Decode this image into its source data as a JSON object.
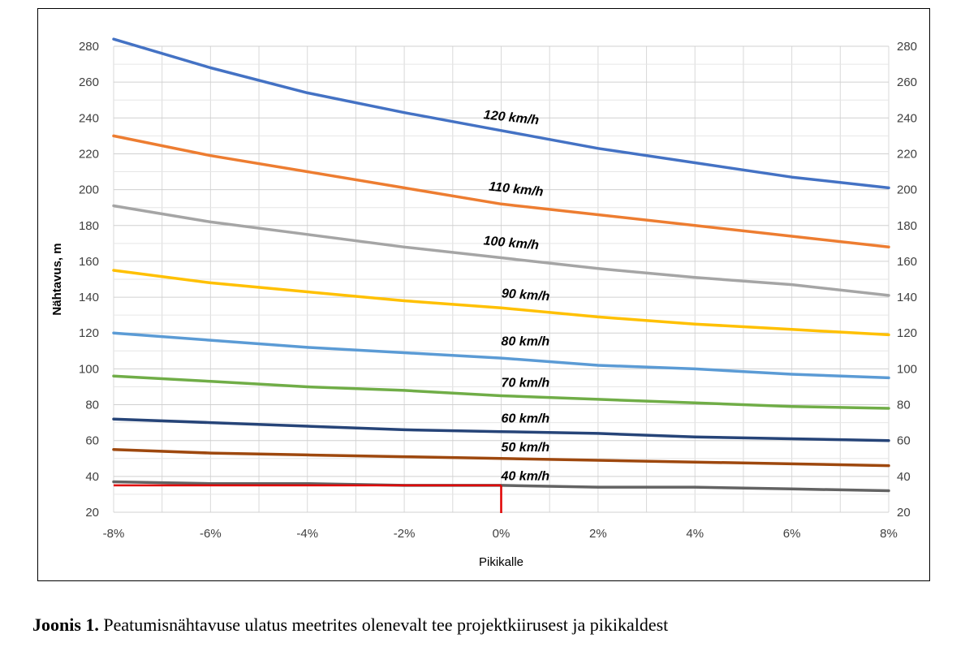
{
  "caption": {
    "label": "Joonis 1.",
    "text": " Peatumisnähtavuse ulatus meetrites olenevalt tee projektkiirusest ja pikikaldest"
  },
  "chart_data": {
    "type": "line",
    "xlabel": "Pikikalle",
    "ylabel": "Nähtavus, m",
    "xlim": [
      -8,
      8
    ],
    "ylim": [
      20,
      280
    ],
    "x_tick_labels": [
      "-8%",
      "-6%",
      "-4%",
      "-2%",
      "0%",
      "2%",
      "4%",
      "6%",
      "8%"
    ],
    "y_ticks": [
      20,
      40,
      60,
      80,
      100,
      120,
      140,
      160,
      180,
      200,
      220,
      240,
      260,
      280
    ],
    "grid": true,
    "x": [
      -8,
      -6,
      -4,
      -2,
      0,
      2,
      4,
      6,
      8
    ],
    "series": [
      {
        "name": "120 km/h",
        "color": "#4472C4",
        "values": [
          284,
          268,
          254,
          243,
          233,
          223,
          215,
          207,
          201
        ]
      },
      {
        "name": "110 km/h",
        "color": "#ED7D31",
        "values": [
          230,
          219,
          210,
          201,
          192,
          186,
          180,
          174,
          168
        ]
      },
      {
        "name": "100 km/h",
        "color": "#A5A5A5",
        "values": [
          191,
          182,
          175,
          168,
          162,
          156,
          151,
          147,
          141
        ]
      },
      {
        "name": "90 km/h",
        "color": "#FFC000",
        "values": [
          155,
          148,
          143,
          138,
          134,
          129,
          125,
          122,
          119
        ]
      },
      {
        "name": "80 km/h",
        "color": "#5B9BD5",
        "values": [
          120,
          116,
          112,
          109,
          106,
          102,
          100,
          97,
          95
        ]
      },
      {
        "name": "70 km/h",
        "color": "#70AD47",
        "values": [
          96,
          93,
          90,
          88,
          85,
          83,
          81,
          79,
          78
        ]
      },
      {
        "name": "60 km/h",
        "color": "#264478",
        "values": [
          72,
          70,
          68,
          66,
          65,
          64,
          62,
          61,
          60
        ]
      },
      {
        "name": "50 km/h",
        "color": "#9E480E",
        "values": [
          55,
          53,
          52,
          51,
          50,
          49,
          48,
          47,
          46
        ]
      },
      {
        "name": "40 km/h",
        "color": "#636363",
        "values": [
          37,
          36,
          36,
          35,
          35,
          34,
          34,
          33,
          32
        ]
      }
    ],
    "series_labels": [
      {
        "text": "120 km/h",
        "x": 0.2,
        "y": 238,
        "rotate": 6
      },
      {
        "text": "110 km/h",
        "x": 0.3,
        "y": 198,
        "rotate": 6
      },
      {
        "text": "100 km/h",
        "x": 0.2,
        "y": 168,
        "rotate": 5
      },
      {
        "text": "90 km/h",
        "x": 0.5,
        "y": 139,
        "rotate": 4
      },
      {
        "text": "80 km/h",
        "x": 0.5,
        "y": 113,
        "rotate": 0
      },
      {
        "text": "70 km/h",
        "x": 0.5,
        "y": 90,
        "rotate": 0
      },
      {
        "text": "60 km/h",
        "x": 0.5,
        "y": 70,
        "rotate": 0
      },
      {
        "text": "50 km/h",
        "x": 0.5,
        "y": 54,
        "rotate": 0
      },
      {
        "text": "40 km/h",
        "x": 0.5,
        "y": 38,
        "rotate": 0
      }
    ],
    "annotation": {
      "color": "#E00000",
      "point": {
        "x": 0,
        "y": 35
      },
      "from_x": -8,
      "down_to_y": 20
    }
  }
}
